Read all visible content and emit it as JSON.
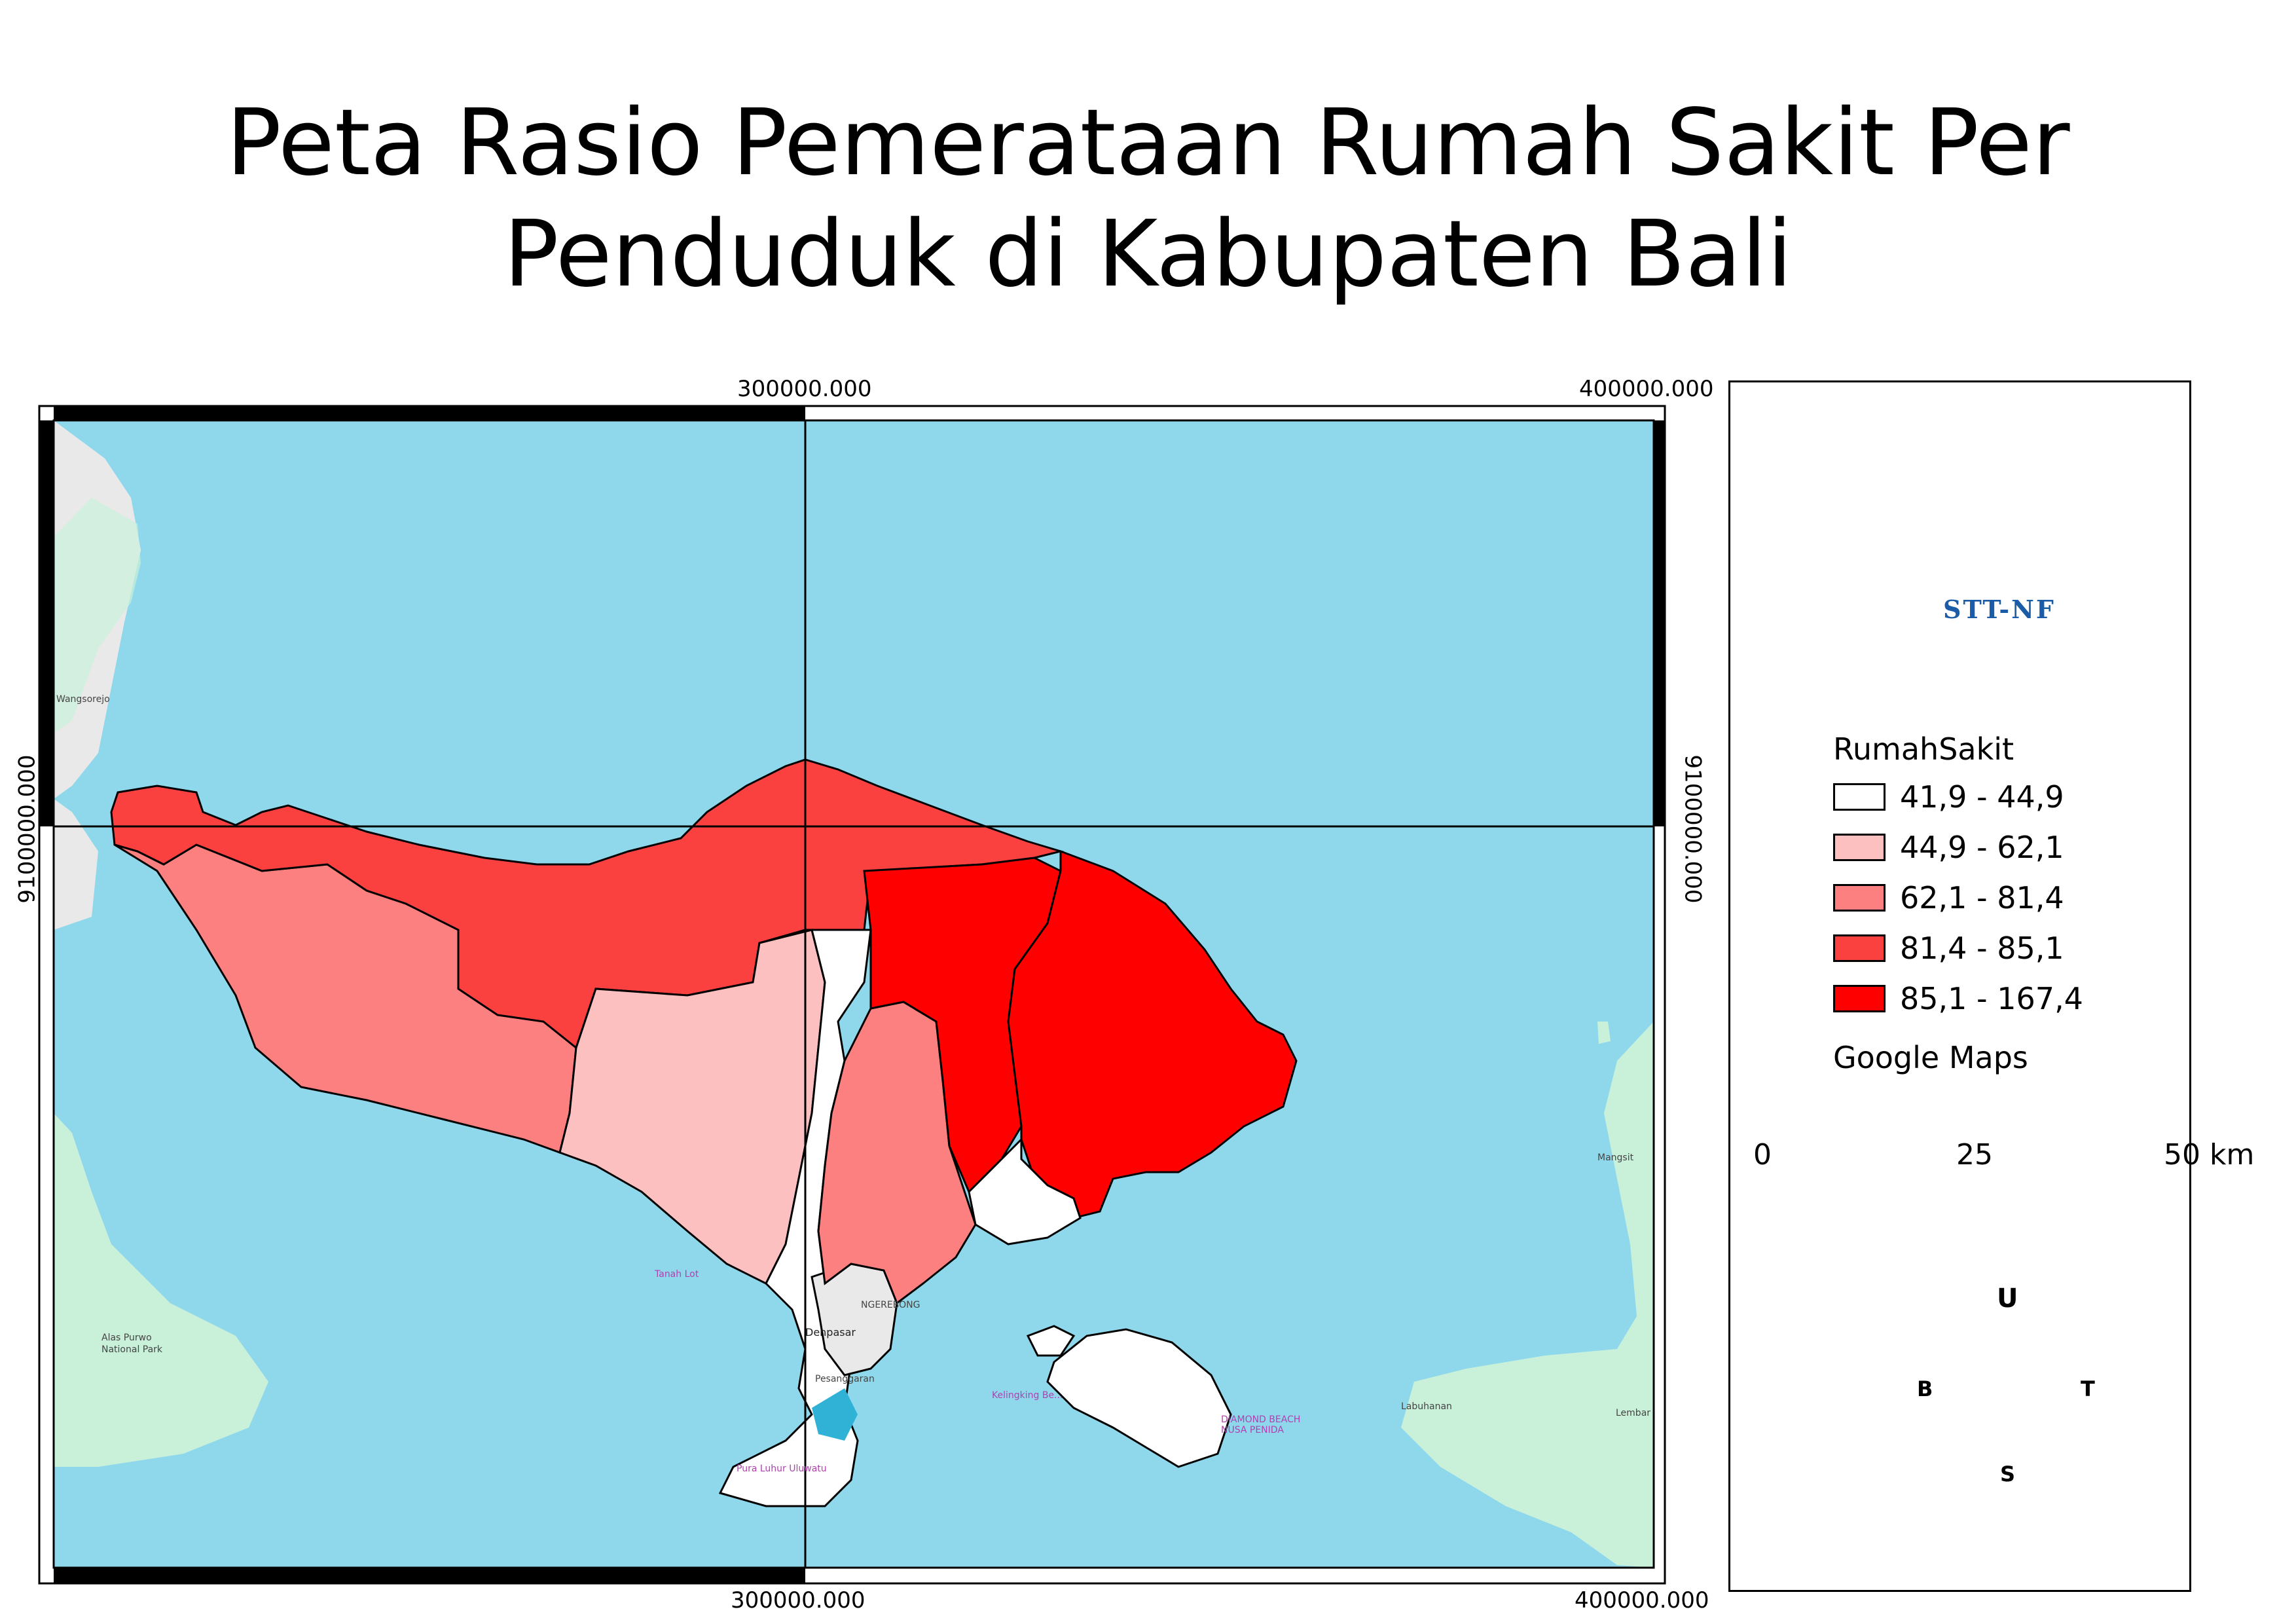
{
  "title": {
    "line1": "Peta Rasio Pemerataan Rumah Sakit Per",
    "line2": "Penduduk di Kabupaten Bali"
  },
  "grid_labels": {
    "top_left": "300000.000",
    "top_right": "400000.000",
    "bottom_left": "300000.000",
    "bottom_right": "400000.000",
    "left": "9100000.000",
    "right": "9100000.000"
  },
  "map_labels": {
    "denpasar": "Denpasar",
    "alas_purwo_1": "Alas Purwo",
    "alas_purwo_2": "National Park",
    "tanah_lot": "Tanah Lot",
    "uluwatu": "Pura Luhur Uluwatu",
    "labuhan": "Labuhanan",
    "nusa_penida_1": "DIAMOND BEACH",
    "nusa_penida_2": "NUSA PENIDA",
    "kelingking": "Kelingking Be...",
    "pesanggaran": "Pesanggaran",
    "ngerebong": "NGEREBONG",
    "mangsit": "Mangsit",
    "lembar": "Lembar",
    "wangsorejo": "Wangsorejo"
  },
  "logo": {
    "text": "STT-NF",
    "color_blue": "#1a5ca8",
    "color_orange": "#f07c22"
  },
  "legend": {
    "title": "RumahSakit",
    "classes": [
      {
        "label": "41,9 - 44,9",
        "color": "#ffffff"
      },
      {
        "label": "44,9 - 62,1",
        "color": "#fcc0c0"
      },
      {
        "label": "62,1 - 81,4",
        "color": "#fc8080"
      },
      {
        "label": "81,4 - 85,1",
        "color": "#fb4040"
      },
      {
        "label": "85,1 - 167,4",
        "color": "#ff0000"
      }
    ],
    "basemap_label": "Google Maps"
  },
  "scale_bar": {
    "labels": [
      "0",
      "25",
      "50 km"
    ]
  },
  "compass": {
    "north": "U",
    "south": "S",
    "east": "T",
    "west": "B"
  },
  "colors": {
    "sea": "#8fd8ec",
    "land_green": "#c9f1da",
    "land_gray": "#e9e9e9"
  }
}
